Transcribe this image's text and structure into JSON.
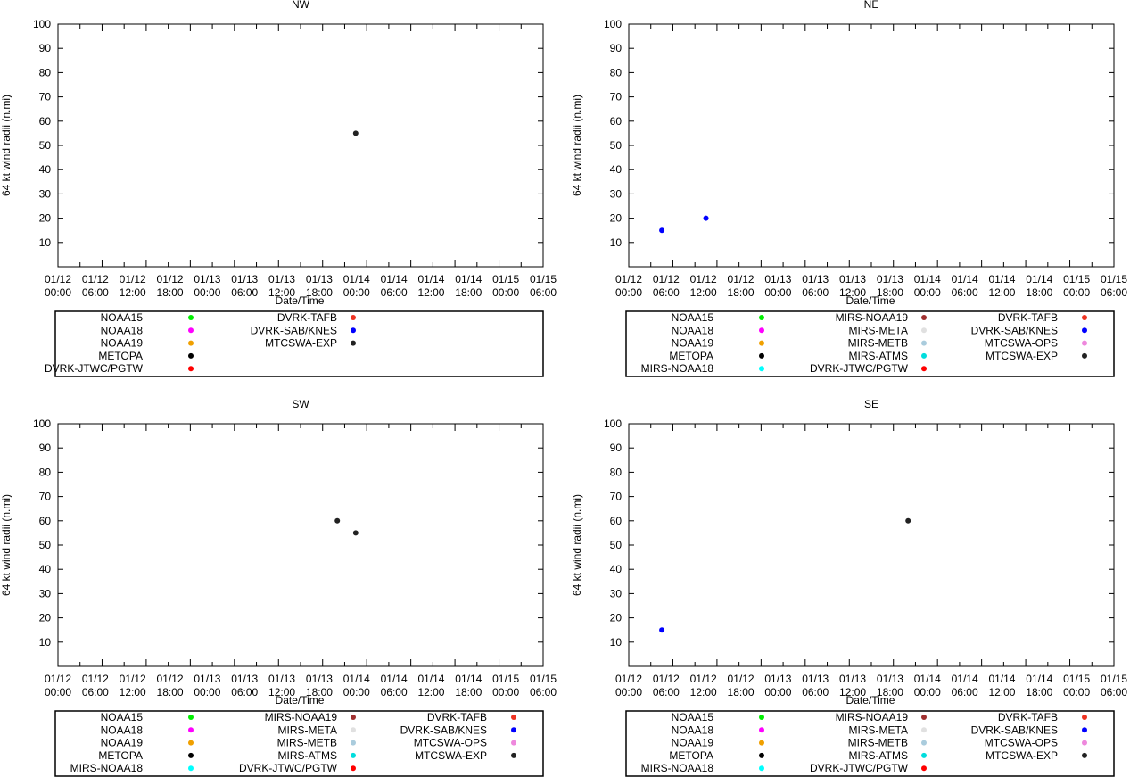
{
  "chart_data": [
    {
      "type": "scatter",
      "title": "NW",
      "xlabel": "Date/Time",
      "ylabel": "64 kt wind radii (n.mi)",
      "xlim": [
        0,
        66
      ],
      "ylim": [
        0,
        100
      ],
      "x_ticks": [
        "01/12\n00:00",
        "01/12\n06:00",
        "01/12\n12:00",
        "01/12\n18:00",
        "01/13\n00:00",
        "01/13\n06:00",
        "01/13\n12:00",
        "01/13\n18:00",
        "01/14\n00:00",
        "01/14\n06:00",
        "01/14\n12:00",
        "01/14\n18:00",
        "01/15\n00:00",
        "01/15\n06:00"
      ],
      "y_ticks": [
        "10",
        "20",
        "30",
        "40",
        "50",
        "60",
        "70",
        "80",
        "90",
        "100"
      ],
      "legend_location": "below",
      "legend": [
        [
          "NOAA15",
          "#00ee00"
        ],
        [
          "NOAA18",
          "#ff00ff"
        ],
        [
          "NOAA19",
          "#f0a000"
        ],
        [
          "METOPA",
          "#000000"
        ],
        [
          "DVRK-JTWC/PGTW",
          "#ff0000"
        ],
        [
          "DVRK-TAFB",
          "#ee3322"
        ],
        [
          "DVRK-SAB/KNES",
          "#0000ff"
        ],
        [
          "MTCSWA-EXP",
          "#222222"
        ]
      ],
      "points": [
        {
          "x": 40.5,
          "y": 55,
          "color": "#222222"
        }
      ]
    },
    {
      "type": "scatter",
      "title": "NE",
      "xlabel": "Date/Time",
      "ylabel": "64 kt wind radii (n.mi)",
      "xlim": [
        0,
        66
      ],
      "ylim": [
        0,
        100
      ],
      "x_ticks": [
        "01/12\n00:00",
        "01/12\n06:00",
        "01/12\n12:00",
        "01/12\n18:00",
        "01/13\n00:00",
        "01/13\n06:00",
        "01/13\n12:00",
        "01/13\n18:00",
        "01/14\n00:00",
        "01/14\n06:00",
        "01/14\n12:00",
        "01/14\n18:00",
        "01/15\n00:00",
        "01/15\n06:00"
      ],
      "y_ticks": [
        "10",
        "20",
        "30",
        "40",
        "50",
        "60",
        "70",
        "80",
        "90",
        "100"
      ],
      "legend_location": "below",
      "legend": [
        [
          "NOAA15",
          "#00ee00"
        ],
        [
          "NOAA18",
          "#ff00ff"
        ],
        [
          "NOAA19",
          "#f0a000"
        ],
        [
          "METOPA",
          "#000000"
        ],
        [
          "MIRS-NOAA18",
          "#00ffff"
        ],
        [
          "MIRS-NOAA19",
          "#a03030"
        ],
        [
          "MIRS-META",
          "#e0e0e0"
        ],
        [
          "MIRS-METB",
          "#aaccdd"
        ],
        [
          "MIRS-ATMS",
          "#00dddd"
        ],
        [
          "DVRK-JTWC/PGTW",
          "#ff0000"
        ],
        [
          "DVRK-TAFB",
          "#ee3322"
        ],
        [
          "DVRK-SAB/KNES",
          "#0000ff"
        ],
        [
          "MTCSWA-OPS",
          "#ee88dd"
        ],
        [
          "MTCSWA-EXP",
          "#222222"
        ]
      ],
      "points": [
        {
          "x": 4.5,
          "y": 15,
          "color": "#0000ff"
        },
        {
          "x": 10.5,
          "y": 20,
          "color": "#0000ff"
        }
      ]
    },
    {
      "type": "scatter",
      "title": "SW",
      "xlabel": "Date/Time",
      "ylabel": "64 kt wind radii (n.mi)",
      "xlim": [
        0,
        66
      ],
      "ylim": [
        0,
        100
      ],
      "x_ticks": [
        "01/12\n00:00",
        "01/12\n06:00",
        "01/12\n12:00",
        "01/12\n18:00",
        "01/13\n00:00",
        "01/13\n06:00",
        "01/13\n12:00",
        "01/13\n18:00",
        "01/14\n00:00",
        "01/14\n06:00",
        "01/14\n12:00",
        "01/14\n18:00",
        "01/15\n00:00",
        "01/15\n06:00"
      ],
      "y_ticks": [
        "10",
        "20",
        "30",
        "40",
        "50",
        "60",
        "70",
        "80",
        "90",
        "100"
      ],
      "legend_location": "below",
      "legend": [
        [
          "NOAA15",
          "#00ee00"
        ],
        [
          "NOAA18",
          "#ff00ff"
        ],
        [
          "NOAA19",
          "#f0a000"
        ],
        [
          "METOPA",
          "#000000"
        ],
        [
          "MIRS-NOAA18",
          "#00ffff"
        ],
        [
          "MIRS-NOAA19",
          "#a03030"
        ],
        [
          "MIRS-META",
          "#e0e0e0"
        ],
        [
          "MIRS-METB",
          "#aaccdd"
        ],
        [
          "MIRS-ATMS",
          "#00dddd"
        ],
        [
          "DVRK-JTWC/PGTW",
          "#ff0000"
        ],
        [
          "DVRK-TAFB",
          "#ee3322"
        ],
        [
          "DVRK-SAB/KNES",
          "#0000ff"
        ],
        [
          "MTCSWA-OPS",
          "#ee88dd"
        ],
        [
          "MTCSWA-EXP",
          "#222222"
        ]
      ],
      "points": [
        {
          "x": 38,
          "y": 60,
          "color": "#222222"
        },
        {
          "x": 40.5,
          "y": 55,
          "color": "#222222"
        }
      ]
    },
    {
      "type": "scatter",
      "title": "SE",
      "xlabel": "Date/Time",
      "ylabel": "64 kt wind radii (n.mi)",
      "xlim": [
        0,
        66
      ],
      "ylim": [
        0,
        100
      ],
      "x_ticks": [
        "01/12\n00:00",
        "01/12\n06:00",
        "01/12\n12:00",
        "01/12\n18:00",
        "01/13\n00:00",
        "01/13\n06:00",
        "01/13\n12:00",
        "01/13\n18:00",
        "01/14\n00:00",
        "01/14\n06:00",
        "01/14\n12:00",
        "01/14\n18:00",
        "01/15\n00:00",
        "01/15\n06:00"
      ],
      "y_ticks": [
        "10",
        "20",
        "30",
        "40",
        "50",
        "60",
        "70",
        "80",
        "90",
        "100"
      ],
      "legend_location": "below",
      "legend": [
        [
          "NOAA15",
          "#00ee00"
        ],
        [
          "NOAA18",
          "#ff00ff"
        ],
        [
          "NOAA19",
          "#f0a000"
        ],
        [
          "METOPA",
          "#000000"
        ],
        [
          "MIRS-NOAA18",
          "#00ffff"
        ],
        [
          "MIRS-NOAA19",
          "#a03030"
        ],
        [
          "MIRS-META",
          "#e0e0e0"
        ],
        [
          "MIRS-METB",
          "#aaccdd"
        ],
        [
          "MIRS-ATMS",
          "#00dddd"
        ],
        [
          "DVRK-JTWC/PGTW",
          "#ff0000"
        ],
        [
          "DVRK-TAFB",
          "#ee3322"
        ],
        [
          "DVRK-SAB/KNES",
          "#0000ff"
        ],
        [
          "MTCSWA-OPS",
          "#ee88dd"
        ],
        [
          "MTCSWA-EXP",
          "#222222"
        ]
      ],
      "points": [
        {
          "x": 4.5,
          "y": 15,
          "color": "#0000ff"
        },
        {
          "x": 38,
          "y": 60,
          "color": "#222222"
        }
      ]
    }
  ]
}
